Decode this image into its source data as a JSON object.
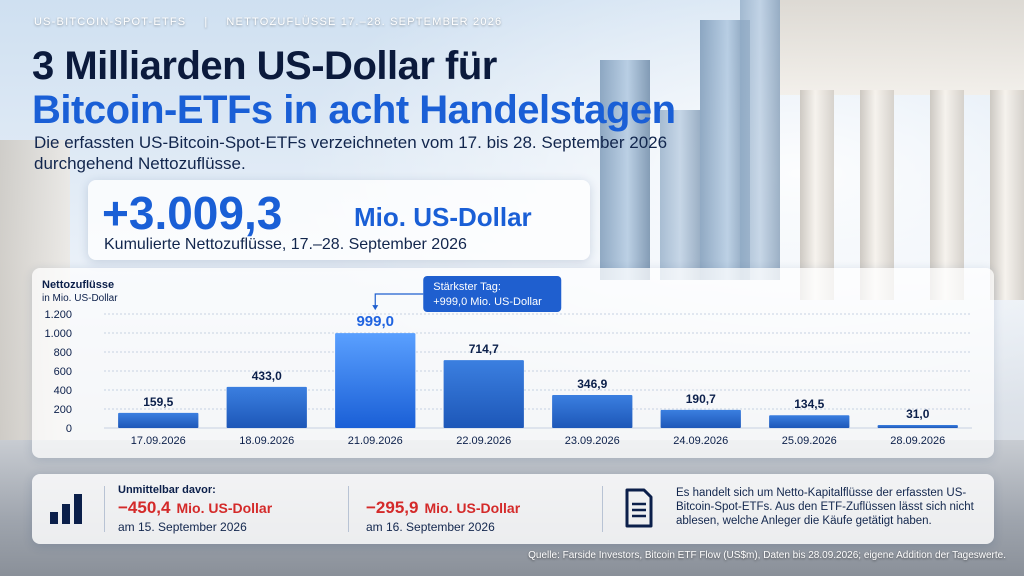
{
  "header": {
    "kicker": "US-BITCOIN-SPOT-ETFS",
    "kicker_sep": "|",
    "kicker_period": "NETTOZUFLÜSSE 17.–28. SEPTEMBER 2026",
    "title_line1": "3 Milliarden US-Dollar für",
    "title_line2": "Bitcoin-ETFs in acht Handelstagen",
    "subtitle": "Die erfassten US-Bitcoin-Spot-ETFs verzeichneten vom 17. bis 28. September 2026 durchgehend Nettozuflüsse."
  },
  "kpi": {
    "value": "+3.009,3",
    "unit": "Mio. US-Dollar",
    "label": "Kumulierte Nettozuflüsse, 17.–28. September 2026"
  },
  "chart_data": {
    "type": "bar",
    "ylabel": "Nettozuflüsse",
    "yunit": "in Mio. US-Dollar",
    "ylim": [
      0,
      1200
    ],
    "yticks": [
      0,
      200,
      400,
      600,
      800,
      1000,
      1200
    ],
    "ytick_labels": [
      "0",
      "200",
      "400",
      "600",
      "800",
      "1.000",
      "1.200"
    ],
    "categories": [
      "17.09.2026",
      "18.09.2026",
      "21.09.2026",
      "22.09.2026",
      "23.09.2026",
      "24.09.2026",
      "25.09.2026",
      "28.09.2026"
    ],
    "values": [
      159.5,
      433.0,
      999.0,
      714.7,
      346.9,
      190.7,
      134.5,
      31.0
    ],
    "value_labels": [
      "159,5",
      "433,0",
      "999,0",
      "714,7",
      "346,9",
      "190,7",
      "134,5",
      "31,0"
    ],
    "highlight_index": 2,
    "grid": true,
    "callout": {
      "line1": "Stärkster Tag:",
      "line2": "+999,0 Mio. US-Dollar"
    },
    "colors": {
      "bar": "#2d6fd3",
      "bar_highlight": "#1f63e0",
      "callout": "#1f5fcf",
      "highlight_label": "#1f63e0",
      "label": "#0b1f4a"
    }
  },
  "previous": {
    "title": "Unmittelbar davor:",
    "items": [
      {
        "value": "−450,4",
        "unit": "Mio. US-Dollar",
        "date": "am 15. September 2026"
      },
      {
        "value": "−295,9",
        "unit": "Mio. US-Dollar",
        "date": "am 16. September 2026"
      }
    ],
    "color": "#d42a2a"
  },
  "note": "Es handelt sich um Netto-Kapitalflüsse der erfassten US-Bitcoin-Spot-ETFs. Aus den ETF-Zuflüssen lässt sich nicht ablesen, welche Anleger die Käufe getätigt haben.",
  "icons": {
    "chart": "bar-chart-icon",
    "document": "document-icon"
  },
  "source": "Quelle: Farside Investors, Bitcoin ETF Flow (US$m), Daten bis 28.09.2026; eigene Addition der Tageswerte."
}
